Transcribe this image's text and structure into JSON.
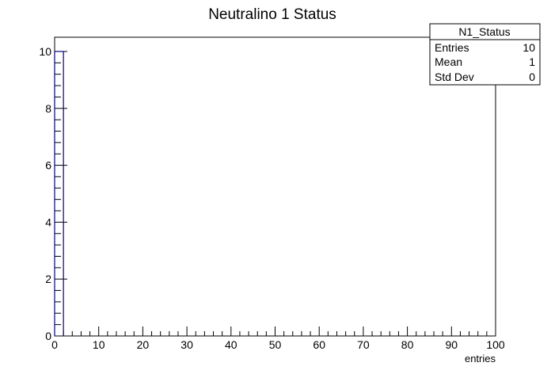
{
  "chart_data": {
    "type": "bar",
    "title": "Neutralino 1 Status",
    "xlabel": "entries",
    "ylabel": "",
    "xlim": [
      0,
      100
    ],
    "ylim": [
      0,
      10.5
    ],
    "x_ticks": [
      "0",
      "10",
      "20",
      "30",
      "40",
      "50",
      "60",
      "70",
      "80",
      "90",
      "100"
    ],
    "y_ticks": [
      "0",
      "2",
      "4",
      "6",
      "8",
      "10"
    ],
    "bins": [
      {
        "x_low": 0,
        "x_high": 2,
        "value": 10
      }
    ],
    "grid": false,
    "fill": false
  },
  "stats_box": {
    "name": "N1_Status",
    "rows": [
      {
        "label": "Entries",
        "value": "10"
      },
      {
        "label": "Mean",
        "value": "1"
      },
      {
        "label": "Std Dev",
        "value": "0"
      }
    ]
  },
  "colors": {
    "histogram_line": "#000080",
    "axis": "#000000",
    "background": "#ffffff"
  }
}
